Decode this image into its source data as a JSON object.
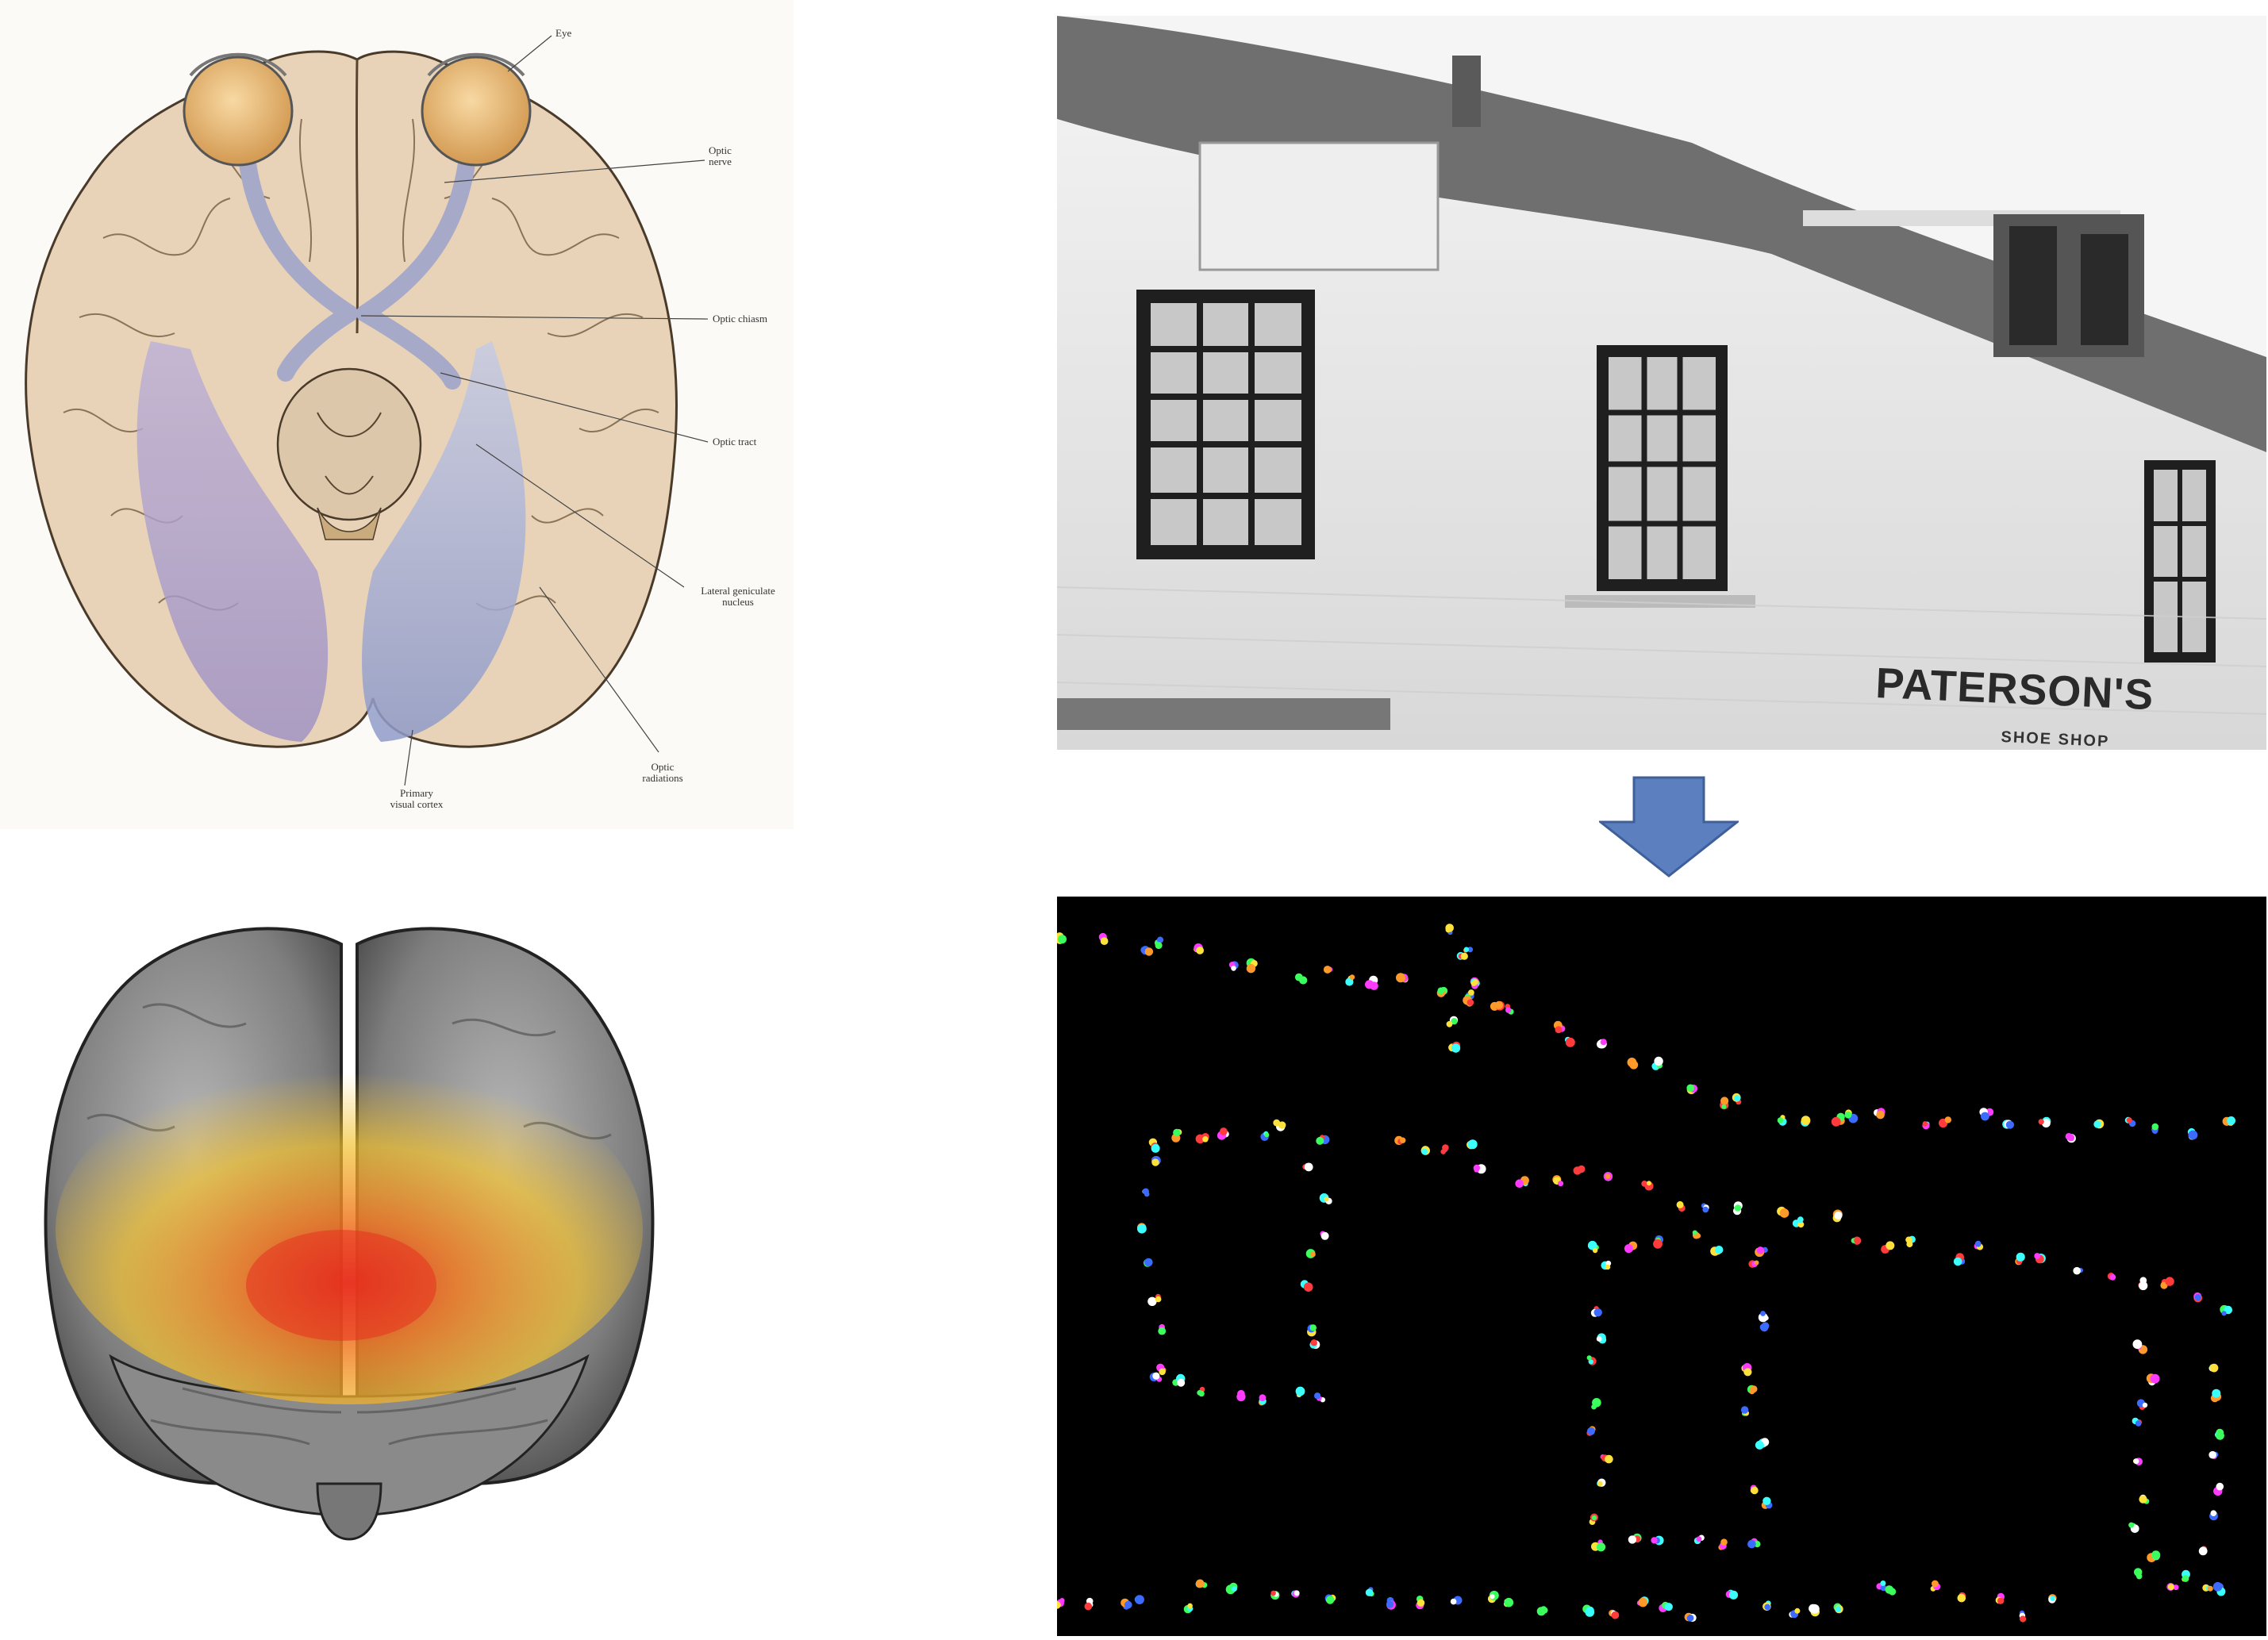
{
  "brain_diagram": {
    "labels": {
      "eye": "Eye",
      "optic_nerve": "Optic\nnerve",
      "optic_chiasm": "Optic chiasm",
      "optic_tract": "Optic tract",
      "lateral_geniculate": "Lateral geniculate\nnucleus",
      "optic_radiations": "Optic\nradiations",
      "primary_visual_cortex": "Primary\nvisual cortex"
    }
  },
  "photo": {
    "sign_main": "PATERSON'S",
    "sign_sub": "SHOE SHOP"
  },
  "colors": {
    "arrow_fill": "#5b7fbf",
    "arrow_stroke": "#3f5f9a",
    "activation_red": "#e8321f",
    "activation_yellow": "#f2c12e",
    "feature_background": "#000000"
  },
  "icons": {
    "arrow": "down-arrow-icon"
  }
}
